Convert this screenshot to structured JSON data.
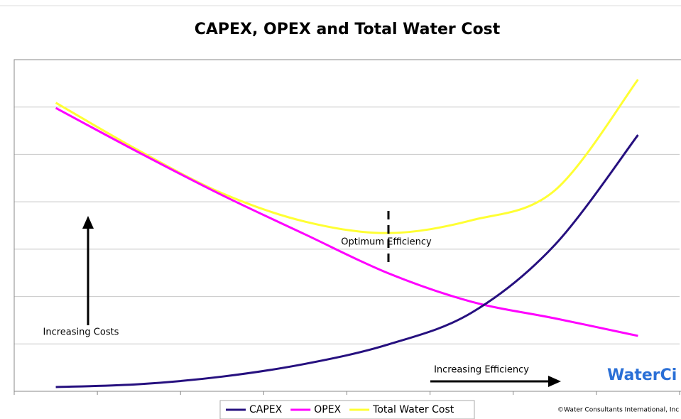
{
  "chart_data": {
    "type": "line",
    "title": "CAPEX, OPEX and Total Water Cost",
    "categories": [
      null,
      null,
      null,
      null,
      null,
      null,
      null,
      null
    ],
    "series": [
      {
        "name": "CAPEX",
        "color": "#26107f",
        "values": [
          0.09,
          0.15,
          0.31,
          0.58,
          0.99,
          1.66,
          3.09,
          5.41
        ]
      },
      {
        "name": "OPEX",
        "color": "#ff00ff",
        "values": [
          5.98,
          5.04,
          4.14,
          3.31,
          2.49,
          1.89,
          1.54,
          1.17
        ]
      },
      {
        "name": "Total Water Cost",
        "color": "#ffff33",
        "values": [
          6.09,
          5.08,
          4.18,
          3.58,
          3.34,
          3.61,
          4.24,
          6.58
        ]
      }
    ],
    "ylim": [
      0,
      7
    ],
    "ygrid": [
      1,
      2,
      3,
      4,
      5,
      6
    ],
    "annotations": [
      "Optimum Efficiency",
      "Increasing Costs",
      "Increasing Efficiency"
    ],
    "logo": "WaterCi",
    "credit": "©Water Consultants International, Inc",
    "legend": "bottom"
  }
}
